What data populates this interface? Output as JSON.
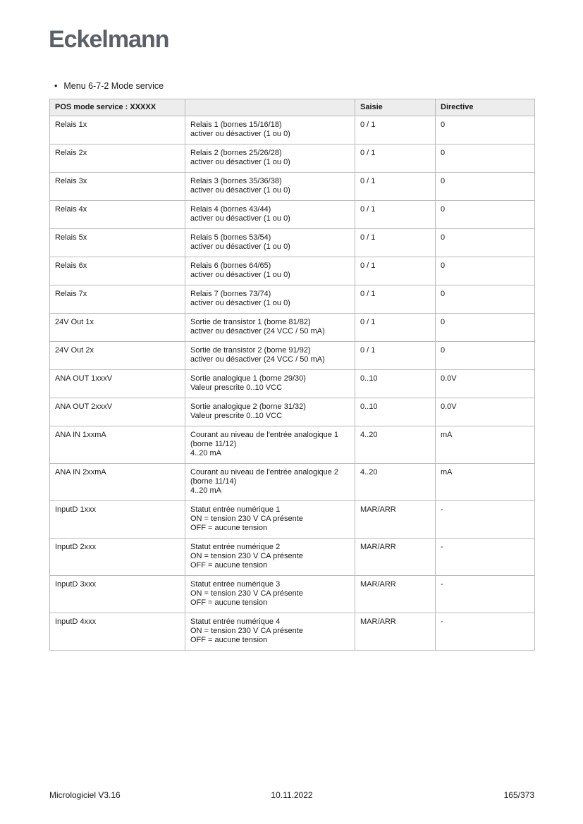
{
  "logo": {
    "text": "Eckelmann",
    "color": "#5b6066"
  },
  "menu": {
    "bullet": "•",
    "label": "Menu 6-7-2 Mode service"
  },
  "table": {
    "headers": [
      "POS mode service : XXXXX",
      "",
      "Saisie",
      "Directive"
    ],
    "header_bg": "#ededed",
    "border_color": "#b9b9b9",
    "rows": [
      {
        "pos": "Relais 1x",
        "description": [
          "Relais 1 (bornes 15/16/18)",
          "activer ou désactiver (1 ou 0)"
        ],
        "saisie": "0 / 1",
        "directive": "0"
      },
      {
        "pos": "Relais 2x",
        "description": [
          "Relais 2 (bornes 25/26/28)",
          "activer ou désactiver (1 ou 0)"
        ],
        "saisie": "0 / 1",
        "directive": "0"
      },
      {
        "pos": "Relais 3x",
        "description": [
          "Relais 3 (bornes 35/36/38)",
          "activer ou désactiver (1 ou 0)"
        ],
        "saisie": "0 / 1",
        "directive": "0"
      },
      {
        "pos": "Relais 4x",
        "description": [
          "Relais 4 (bornes 43/44)",
          "activer ou désactiver (1 ou 0)"
        ],
        "saisie": "0 / 1",
        "directive": "0"
      },
      {
        "pos": "Relais 5x",
        "description": [
          "Relais 5 (bornes 53/54)",
          "activer ou désactiver (1 ou 0)"
        ],
        "saisie": "0 / 1",
        "directive": "0"
      },
      {
        "pos": "Relais 6x",
        "description": [
          "Relais 6 (bornes 64/65)",
          "activer ou désactiver (1 ou 0)"
        ],
        "saisie": "0 / 1",
        "directive": "0"
      },
      {
        "pos": "Relais 7x",
        "description": [
          "Relais 7 (bornes 73/74)",
          "activer ou désactiver (1 ou 0)"
        ],
        "saisie": "0 / 1",
        "directive": "0"
      },
      {
        "pos": "24V Out 1x",
        "description": [
          "Sortie de transistor 1 (borne 81/82)",
          "activer ou désactiver (24 VCC / 50 mA)"
        ],
        "saisie": "0 / 1",
        "directive": "0"
      },
      {
        "pos": "24V Out 2x",
        "description": [
          "Sortie de transistor 2 (borne 91/92)",
          "activer ou désactiver (24 VCC / 50 mA)"
        ],
        "saisie": "0 / 1",
        "directive": "0"
      },
      {
        "pos": "ANA OUT 1xxxV",
        "description": [
          "Sortie analogique 1 (borne 29/30)",
          "Valeur prescrite 0..10 VCC"
        ],
        "saisie": "0..10",
        "directive": "0.0V"
      },
      {
        "pos": "ANA OUT 2xxxV",
        "description": [
          "Sortie analogique 2 (borne 31/32)",
          "Valeur prescrite 0..10 VCC"
        ],
        "saisie": "0..10",
        "directive": "0.0V"
      },
      {
        "pos": "ANA IN 1xxmA",
        "description": [
          "Courant au niveau de l'entrée analogique 1",
          "(borne 11/12)",
          "4..20 mA"
        ],
        "saisie": "4..20",
        "directive": "mA"
      },
      {
        "pos": "ANA IN 2xxmA",
        "description": [
          "Courant au niveau de l'entrée analogique 2",
          "(borne 11/14)",
          "4..20 mA"
        ],
        "saisie": "4..20",
        "directive": "mA"
      },
      {
        "pos": "InputD 1xxx",
        "description": [
          "Statut entrée numérique 1",
          "ON = tension 230 V CA présente",
          "OFF = aucune tension"
        ],
        "saisie": "MAR/ARR",
        "directive": "-"
      },
      {
        "pos": "InputD 2xxx",
        "description": [
          "Statut entrée numérique 2",
          "ON = tension 230 V CA présente",
          "OFF = aucune tension"
        ],
        "saisie": "MAR/ARR",
        "directive": "-"
      },
      {
        "pos": "InputD 3xxx",
        "description": [
          "Statut entrée numérique 3",
          "ON = tension 230 V CA présente",
          "OFF = aucune tension"
        ],
        "saisie": "MAR/ARR",
        "directive": "-"
      },
      {
        "pos": "InputD 4xxx",
        "description": [
          "Statut entrée numérique 4",
          "ON = tension 230 V CA présente",
          "OFF = aucune tension"
        ],
        "saisie": "MAR/ARR",
        "directive": "-"
      }
    ]
  },
  "footer": {
    "left": "Micrologiciel V3.16",
    "center": "10.11.2022",
    "right": "165/373"
  }
}
